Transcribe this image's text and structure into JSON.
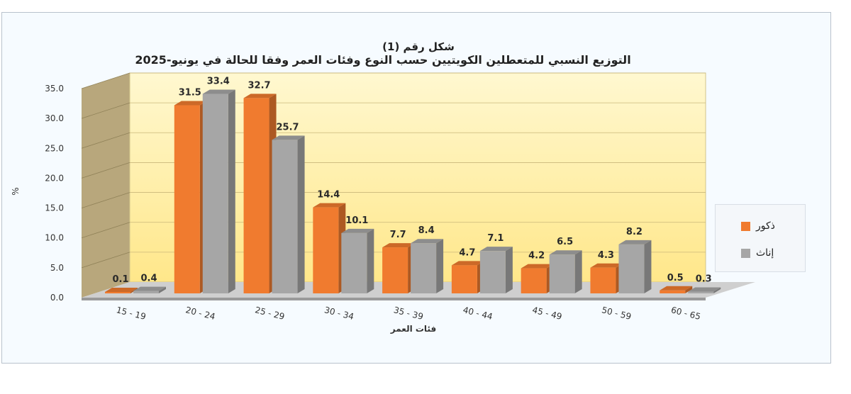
{
  "chart_data": {
    "type": "bar",
    "title": "شكل رقم (1)",
    "subtitle": "التوزيع النسبي للمتعطلين الكويتيين حسب النوع وفئات العمر وفقا للحالة في يونيو-2025",
    "xlabel": "فئات العمر",
    "ylabel": "%",
    "ylim": [
      0,
      35
    ],
    "yticks": [
      "0.0",
      "5.0",
      "10.0",
      "15.0",
      "20.0",
      "25.0",
      "30.0",
      "35.0"
    ],
    "categories": [
      "15 - 19",
      "20 - 24",
      "25 - 29",
      "30 - 34",
      "35 - 39",
      "40 - 44",
      "45 - 49",
      "50 - 59",
      "60 - 65"
    ],
    "series": [
      {
        "name": "ذكور",
        "color": "#f07b2f",
        "values": [
          0.1,
          31.5,
          32.7,
          14.4,
          7.7,
          4.7,
          4.2,
          4.3,
          0.5
        ]
      },
      {
        "name": "إناث",
        "color": "#a6a6a6",
        "values": [
          0.4,
          33.4,
          25.7,
          10.1,
          8.4,
          7.1,
          6.5,
          8.2,
          0.3
        ]
      }
    ],
    "legend_position": "right",
    "grid": true,
    "style": "3d-clustered-column",
    "plot_background": "#fff3b8",
    "wall_color": "#b8a77c"
  }
}
